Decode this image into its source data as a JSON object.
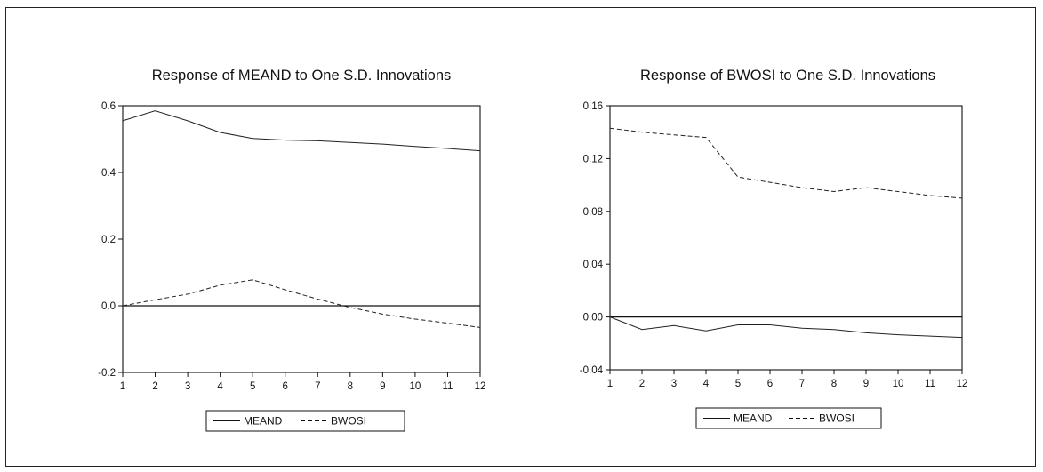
{
  "chart_data": [
    {
      "type": "line",
      "title": "Response of MEAND to One S.D. Innovations",
      "xlabel": "",
      "ylabel": "",
      "x": [
        1,
        2,
        3,
        4,
        5,
        6,
        7,
        8,
        9,
        10,
        11,
        12
      ],
      "xlim": [
        1,
        12
      ],
      "ylim": [
        -0.2,
        0.6
      ],
      "y_ticks": [
        "0.6",
        "0.4",
        "0.2",
        "0.0",
        "-0.2"
      ],
      "y_tick_values": [
        0.6,
        0.4,
        0.2,
        0.0,
        -0.2
      ],
      "x_ticks": [
        "1",
        "2",
        "3",
        "4",
        "5",
        "6",
        "7",
        "8",
        "9",
        "10",
        "11",
        "12"
      ],
      "zero_line": true,
      "grid": false,
      "legend_position": "bottom-center",
      "series": [
        {
          "name": "MEAND",
          "style": "solid",
          "values": [
            0.555,
            0.585,
            0.555,
            0.52,
            0.502,
            0.497,
            0.495,
            0.49,
            0.485,
            0.478,
            0.472,
            0.465
          ]
        },
        {
          "name": "BWOSI",
          "style": "dashed",
          "values": [
            0.0,
            0.018,
            0.035,
            0.062,
            0.078,
            0.048,
            0.02,
            -0.005,
            -0.025,
            -0.04,
            -0.052,
            -0.065
          ]
        }
      ]
    },
    {
      "type": "line",
      "title": "Response of BWOSI to One S.D. Innovations",
      "xlabel": "",
      "ylabel": "",
      "x": [
        1,
        2,
        3,
        4,
        5,
        6,
        7,
        8,
        9,
        10,
        11,
        12
      ],
      "xlim": [
        1,
        12
      ],
      "ylim": [
        -0.04,
        0.16
      ],
      "y_ticks": [
        "0.16",
        "0.12",
        "0.08",
        "0.04",
        "0.00",
        "-0.04"
      ],
      "y_tick_values": [
        0.16,
        0.12,
        0.08,
        0.04,
        0.0,
        -0.04
      ],
      "x_ticks": [
        "1",
        "2",
        "3",
        "4",
        "5",
        "6",
        "7",
        "8",
        "9",
        "10",
        "11",
        "12"
      ],
      "zero_line": true,
      "grid": false,
      "legend_position": "bottom-center",
      "series": [
        {
          "name": "MEAND",
          "style": "solid",
          "values": [
            0.0,
            -0.0095,
            -0.0065,
            -0.0105,
            -0.006,
            -0.006,
            -0.0085,
            -0.0095,
            -0.012,
            -0.0135,
            -0.0145,
            -0.0155
          ]
        },
        {
          "name": "BWOSI",
          "style": "dashed",
          "values": [
            0.143,
            0.14,
            0.138,
            0.136,
            0.106,
            0.102,
            0.098,
            0.095,
            0.098,
            0.095,
            0.092,
            0.09
          ]
        }
      ]
    }
  ]
}
